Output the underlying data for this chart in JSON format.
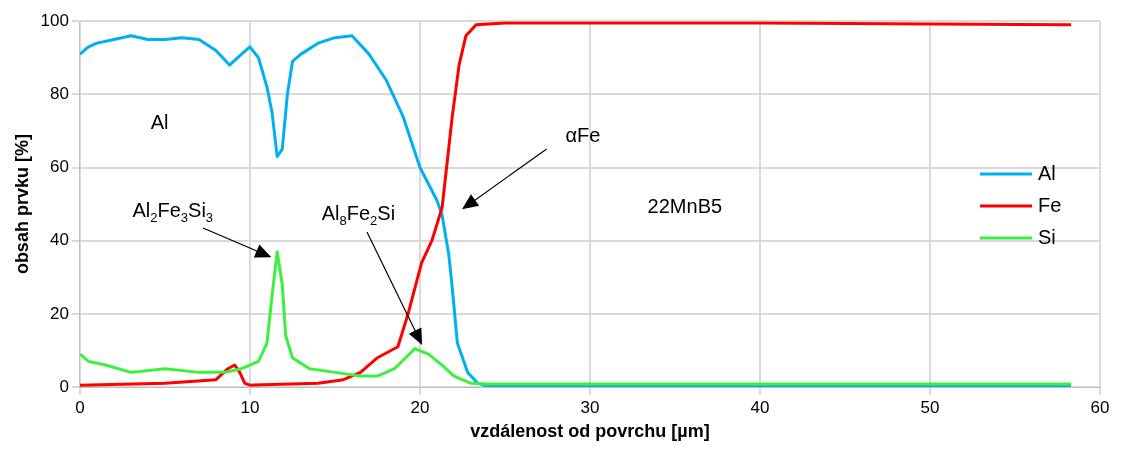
{
  "chart_data": {
    "type": "line",
    "xlabel": "vzdálenost od povrchu [µm]",
    "ylabel": "obsah prvku [%]",
    "xlim": [
      0,
      60
    ],
    "xticks": [
      0,
      10,
      20,
      30,
      40,
      50,
      60
    ],
    "ylim": [
      0,
      100
    ],
    "yticks": [
      0,
      20,
      40,
      60,
      80,
      100
    ],
    "grid": true,
    "legend": "right",
    "marker": "none",
    "line_style": "solid",
    "series": [
      {
        "name": "Al",
        "color": "#00b0f0",
        "x": [
          0,
          0.5,
          1,
          2,
          3,
          4,
          5,
          6,
          7,
          8,
          8.8,
          9.5,
          10,
          10.5,
          11,
          11.3,
          11.6,
          11.9,
          12.2,
          12.5,
          13,
          14,
          15,
          16,
          17,
          18,
          19,
          20,
          21,
          21.3,
          21.7,
          21.9,
          22.2,
          22.8,
          23.4,
          24,
          30,
          40,
          50,
          58.3
        ],
        "values": [
          91,
          93,
          94,
          95,
          96,
          95,
          95,
          95.5,
          95,
          92,
          88,
          91,
          93,
          90,
          82,
          75,
          63,
          65,
          80,
          89,
          91,
          94,
          95.5,
          96,
          91,
          84,
          74,
          60,
          51,
          47,
          36,
          27,
          12,
          4,
          1,
          0.2,
          0.2,
          0.2,
          0.2,
          0.2
        ]
      },
      {
        "name": "Fe",
        "color": "#ff0000",
        "x": [
          0,
          5,
          8,
          8.7,
          9.1,
          9.4,
          9.7,
          10,
          14,
          15.5,
          16.5,
          17.5,
          18.7,
          19.3,
          20.1,
          20.7,
          21.3,
          21.9,
          22.3,
          22.7,
          23.3,
          25,
          40,
          58.3
        ],
        "values": [
          0.5,
          1,
          2,
          5,
          6,
          4,
          1,
          0.5,
          1,
          2,
          4,
          8,
          11,
          20,
          34,
          40,
          49,
          74,
          88,
          96,
          99,
          99.5,
          99.5,
          99
        ]
      },
      {
        "name": "Si",
        "color": "#3ef03e",
        "x": [
          0,
          0.5,
          1.5,
          3,
          5,
          7,
          8.5,
          9.5,
          10,
          10.5,
          11,
          11.3,
          11.6,
          11.9,
          12.1,
          12.5,
          13.5,
          15,
          16.5,
          17.5,
          18.5,
          19.7,
          20.5,
          21.3,
          22,
          23,
          24,
          40,
          58.3
        ],
        "values": [
          9,
          7,
          6,
          4,
          5,
          4,
          4,
          5,
          6,
          7,
          12,
          25,
          37,
          28,
          14,
          8,
          5,
          4,
          3,
          3,
          5,
          10.5,
          9,
          6,
          3,
          1,
          0.8,
          0.8,
          0.8
        ]
      }
    ],
    "annotations": [
      "Al",
      "Al$_{2}$Fe$_{3}$Si$_{3}$",
      "Al$_{8}$Fe$_{2}$Si",
      "αFe",
      "22MnB5"
    ]
  }
}
